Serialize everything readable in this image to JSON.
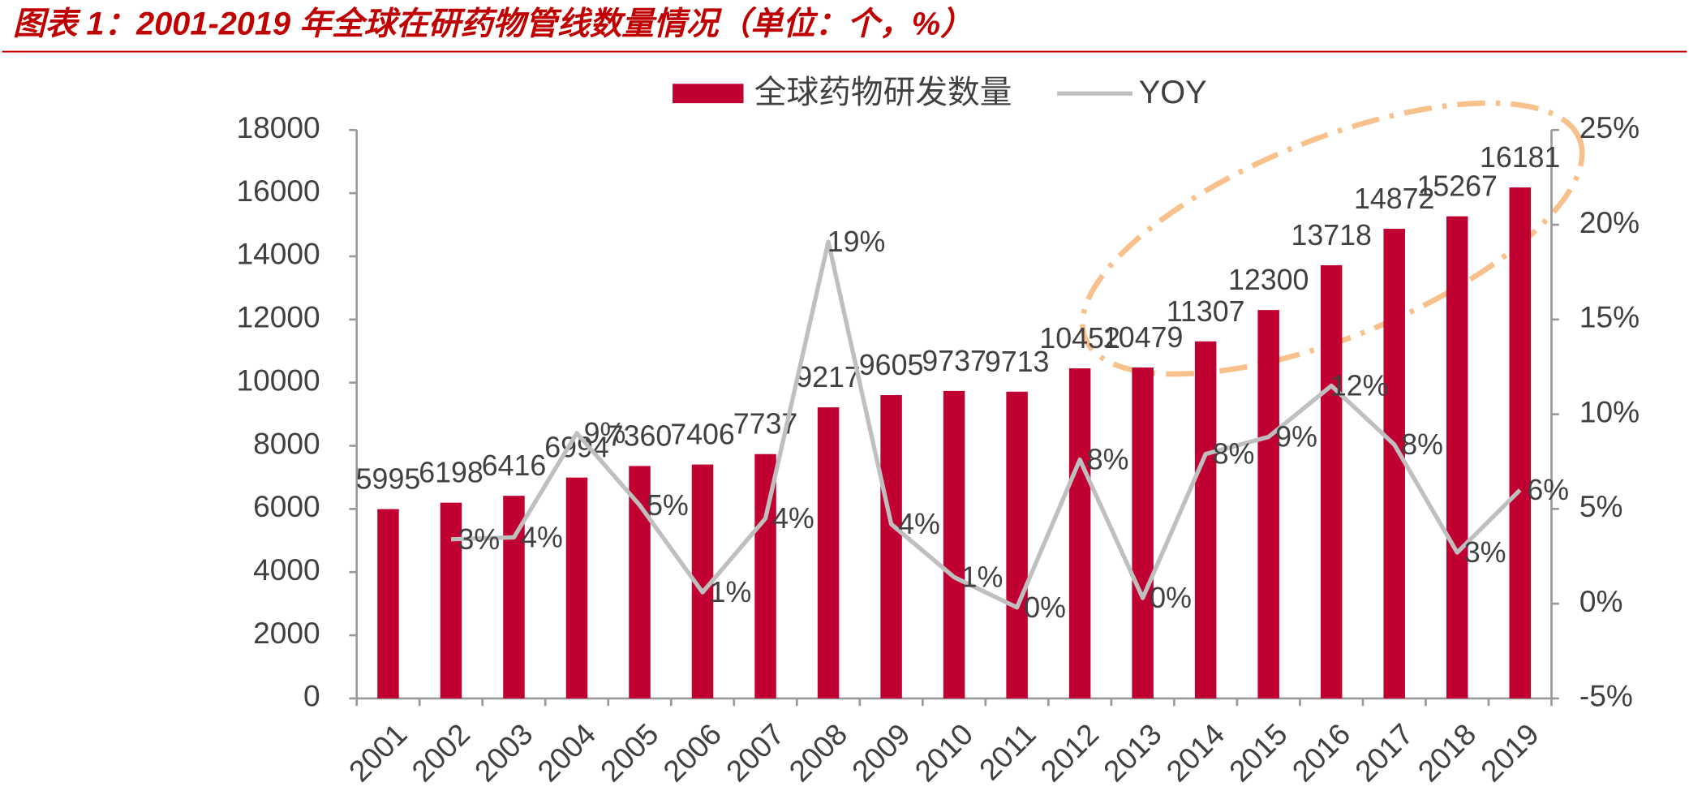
{
  "chart_data": {
    "type": "bar-line",
    "title": "图表 1：2001-2019 年全球在研药物管线数量情况（单位：个，%）",
    "categories": [
      "2001",
      "2002",
      "2003",
      "2004",
      "2005",
      "2006",
      "2007",
      "2008",
      "2009",
      "2010",
      "2011",
      "2012",
      "2013",
      "2014",
      "2015",
      "2016",
      "2017",
      "2018",
      "2019"
    ],
    "series": [
      {
        "name": "全球药物研发数量",
        "type": "bar",
        "color": "#c00030",
        "values": [
          5995,
          6198,
          6416,
          6994,
          7360,
          7406,
          7737,
          9217,
          9605,
          9737,
          9713,
          10452,
          10479,
          11307,
          12300,
          13718,
          14872,
          15267,
          16181
        ]
      },
      {
        "name": "YOY",
        "type": "line",
        "axis": "y2",
        "color": "#bfbfbf",
        "values": [
          null,
          3.4,
          3.5,
          9.0,
          5.2,
          0.6,
          4.5,
          19.1,
          4.2,
          1.4,
          -0.2,
          7.6,
          0.3,
          7.9,
          8.8,
          11.5,
          8.4,
          2.7,
          6.0
        ],
        "value_labels": [
          null,
          "3%",
          "4%",
          "9%",
          "5%",
          "1%",
          "4%",
          "19%",
          "4%",
          "1%",
          "0%",
          "8%",
          "0%",
          "8%",
          "9%",
          "12%",
          "8%",
          "3%",
          "6%"
        ]
      }
    ],
    "ylim": [
      0,
      18000
    ],
    "yticks": [
      0,
      2000,
      4000,
      6000,
      8000,
      10000,
      12000,
      14000,
      16000,
      18000
    ],
    "y2lim": [
      -5,
      25
    ],
    "y2ticks": [
      {
        "value": -5,
        "label": "-5%"
      },
      {
        "value": 0,
        "label": "0%"
      },
      {
        "value": 5,
        "label": "5%"
      },
      {
        "value": 10,
        "label": "10%"
      },
      {
        "value": 15,
        "label": "15%"
      },
      {
        "value": 20,
        "label": "20%"
      },
      {
        "value": 25,
        "label": "25%"
      }
    ],
    "grid": false,
    "legend": "top"
  }
}
